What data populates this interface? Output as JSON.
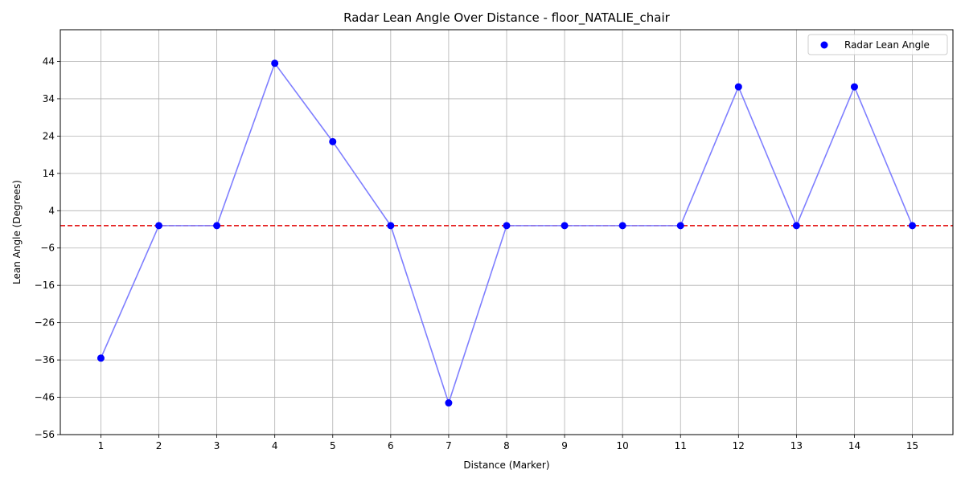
{
  "chart_data": {
    "type": "scatter",
    "title": "Radar Lean Angle Over Distance - floor_NATALIE_chair",
    "xlabel": "Distance (Marker)",
    "ylabel": "Lean Angle (Degrees)",
    "x": [
      1,
      2,
      3,
      4,
      5,
      6,
      7,
      8,
      9,
      10,
      11,
      12,
      13,
      14,
      15
    ],
    "xticks": [
      "1",
      "2",
      "3",
      "4",
      "5",
      "6",
      "7",
      "8",
      "9",
      "10",
      "11",
      "12",
      "13",
      "14",
      "15"
    ],
    "yticks": [
      -56,
      -46,
      -36,
      -26,
      -16,
      -6,
      4,
      14,
      24,
      34,
      44
    ],
    "xlim": [
      0.3,
      15.7
    ],
    "ylim": [
      -56,
      52.5
    ],
    "grid": true,
    "series": [
      {
        "name": "Radar Lean Angle",
        "values": [
          -35.5,
          0,
          0,
          43.5,
          22.5,
          0,
          -47.5,
          0,
          0,
          0,
          0,
          37.2,
          0,
          37.2,
          0
        ],
        "marker_color": "#0000ff",
        "line_color": "#7f7fff"
      }
    ],
    "reference_line": {
      "y": 0,
      "color": "#e00000",
      "style": "dashed"
    },
    "legend": {
      "position": "top-right",
      "entries": [
        "Radar Lean Angle"
      ]
    }
  }
}
